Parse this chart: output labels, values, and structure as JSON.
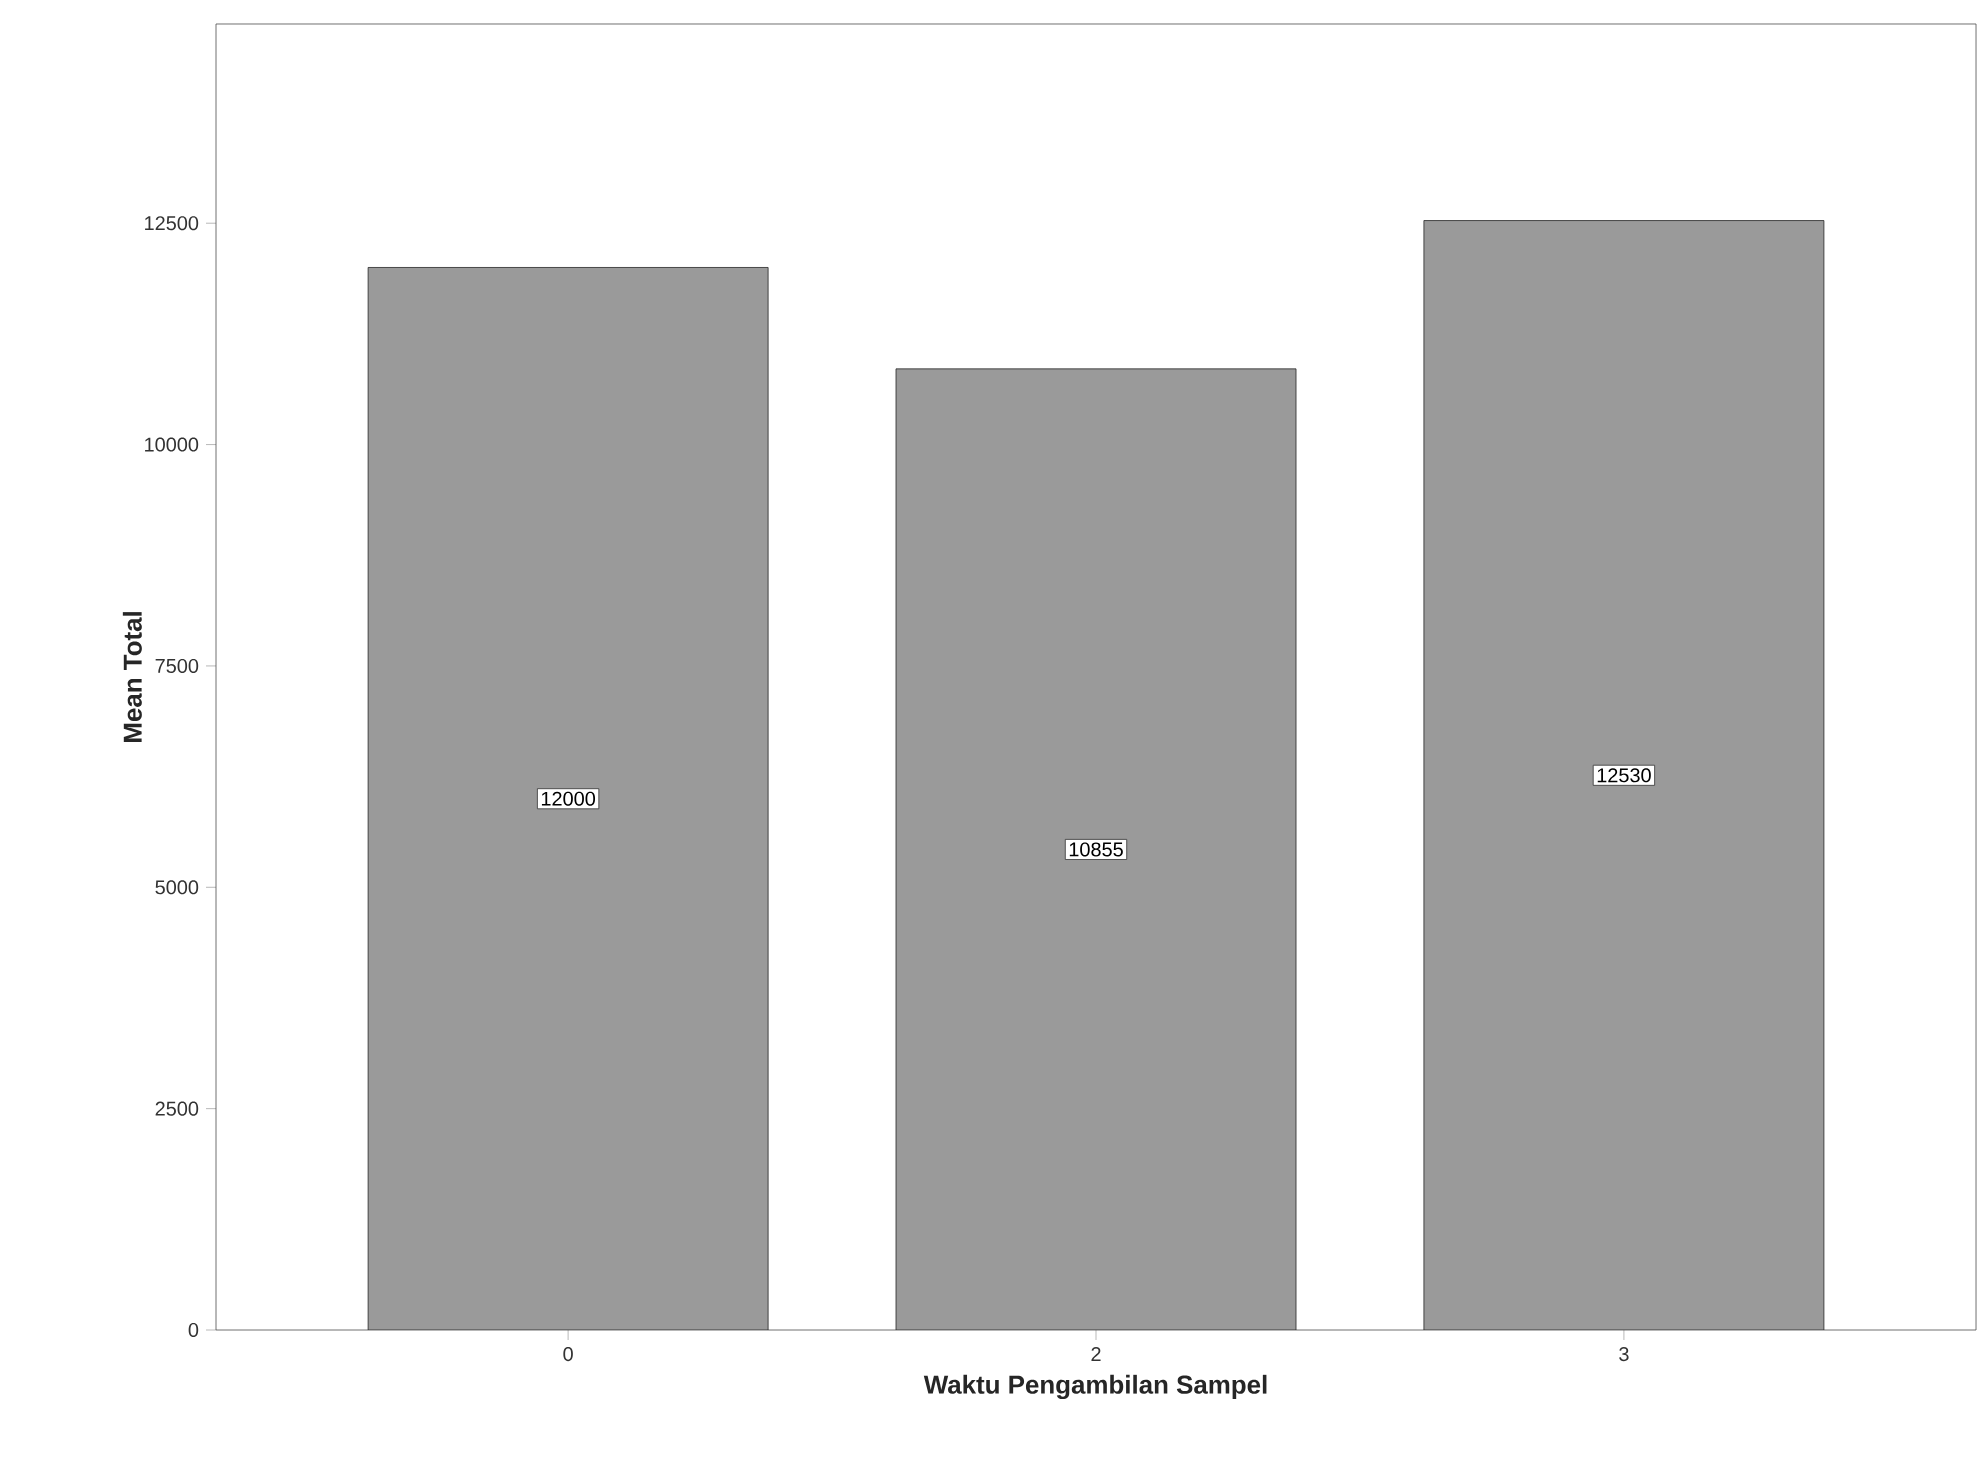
{
  "chart_data": {
    "type": "bar",
    "xlabel": "Waktu Pengambilan Sampel",
    "ylabel": "Mean Total",
    "categories": [
      "0",
      "2",
      "3"
    ],
    "values": [
      12000,
      10855,
      12530
    ],
    "color": "#9a9a9a",
    "ylim": [
      0,
      14750
    ],
    "yticks": [
      0,
      2500,
      5000,
      7500,
      10000,
      12500
    ],
    "data_labels": true
  }
}
